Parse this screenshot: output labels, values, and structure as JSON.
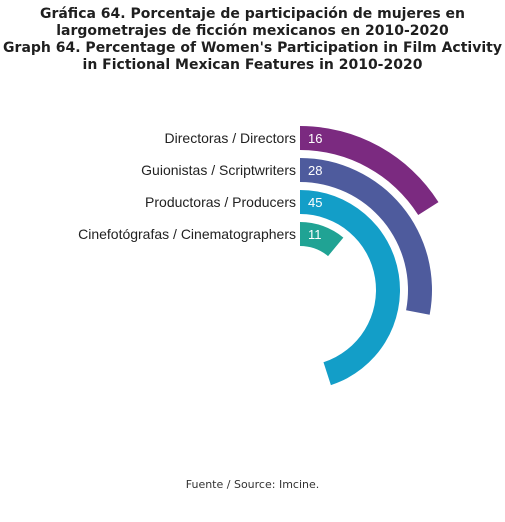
{
  "title_lines": [
    "Gráfica 64. Porcentaje de participación de mujeres en",
    "largometrajes de ficción mexicanos en 2010-2020",
    "Graph 64. Percentage of Women's Participation in Film Activity",
    "in Fictional Mexican Features in 2010-2020"
  ],
  "source": "Fuente / Source: Imcine.",
  "chart_data": {
    "type": "radial-bar",
    "title": "Gráfica 64. Porcentaje de participación de mujeres en largometrajes de ficción mexicanos en 2010-2020 / Graph 64. Percentage of Women's Participation in Film Activity in Fictional Mexican Features in 2010-2020",
    "unit": "%",
    "max_value": 100,
    "categories": [
      "Directoras / Directors",
      "Guionistas / Scriptwriters",
      "Productoras / Producers",
      "Cinefotógrafas / Cinematographers"
    ],
    "values": [
      16,
      28,
      45,
      11
    ],
    "colors": [
      "#7b2a80",
      "#4e5b9d",
      "#139ec8",
      "#20a394"
    ]
  }
}
